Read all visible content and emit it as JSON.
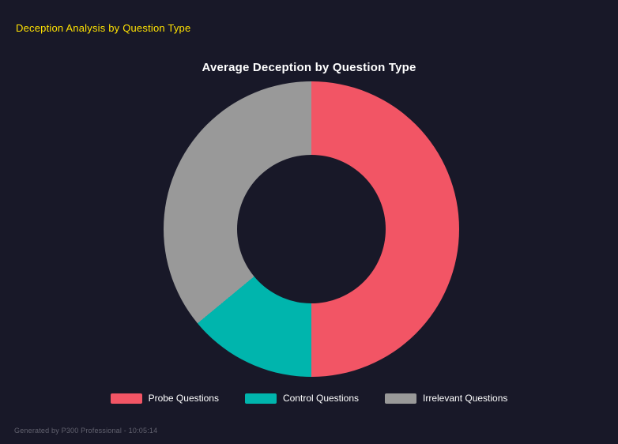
{
  "header": {
    "title": "Deception Analysis by Question Type"
  },
  "chart_data": {
    "type": "pie",
    "subtype": "donut",
    "title": "Average Deception by Question Type",
    "labels": [
      "Probe Questions",
      "Control Questions",
      "Irrelevant Questions"
    ],
    "values": [
      50,
      14,
      36
    ],
    "values_are": "percent share of circle, estimated from arc angles",
    "colors": [
      "#f25565",
      "#00b5ad",
      "#999999"
    ],
    "start_angle": "top",
    "direction": "clockwise",
    "inner_radius_ratio": 0.5,
    "legend_position": "bottom"
  },
  "legend": {
    "items": [
      {
        "label": "Probe Questions",
        "color": "#f25565"
      },
      {
        "label": "Control Questions",
        "color": "#00b5ad"
      },
      {
        "label": "Irrelevant Questions",
        "color": "#999999"
      }
    ]
  },
  "footer": {
    "text": "Generated by P300 Professional - 10:05:14"
  },
  "colors": {
    "background": "#181828",
    "title_yellow": "#ffe202",
    "chart_title": "#ffffff",
    "legend_text": "#ffffff",
    "footer_text": "#62626f"
  }
}
